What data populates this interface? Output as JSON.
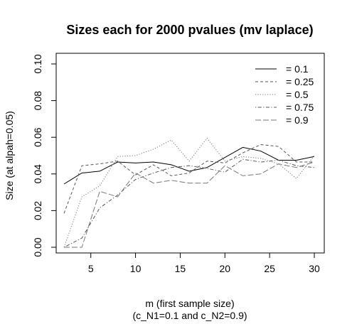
{
  "chart_data": {
    "type": "line",
    "title": "Sizes each for 2000 pvalues (mv laplace)",
    "xlabel": "m (first sample size)",
    "xlabel2": "(c_N1=0.1 and c_N2=0.9)",
    "ylabel": "Size (at alpah=0.05)",
    "xlim": [
      1,
      31
    ],
    "ylim": [
      0.0,
      0.1
    ],
    "xticks": [
      5,
      10,
      15,
      20,
      25,
      30
    ],
    "xtick_labels": [
      "5",
      "10",
      "15",
      "20",
      "25",
      "30"
    ],
    "yticks": [
      0.0,
      0.02,
      0.04,
      0.06,
      0.08,
      0.1
    ],
    "ytick_labels": [
      "0.00",
      "0.02",
      "0.04",
      "0.06",
      "0.08",
      "0.10"
    ],
    "legend_position": "top-right",
    "x": [
      2,
      4,
      6,
      8,
      10,
      12,
      14,
      16,
      18,
      20,
      22,
      24,
      26,
      28,
      30
    ],
    "series": [
      {
        "name": "= 0.1",
        "dash": "solid",
        "color": "#000000",
        "values": [
          0.0345,
          0.0405,
          0.0415,
          0.0465,
          0.046,
          0.0465,
          0.045,
          0.0415,
          0.0435,
          0.049,
          0.0545,
          0.0525,
          0.0475,
          0.0475,
          0.0495
        ]
      },
      {
        "name": "= 0.25",
        "dash": "dashed",
        "color": "#555555",
        "values": [
          0.0185,
          0.0445,
          0.0455,
          0.047,
          0.0395,
          0.045,
          0.039,
          0.0405,
          0.047,
          0.046,
          0.0515,
          0.056,
          0.055,
          0.0465,
          0.0465
        ]
      },
      {
        "name": "= 0.5",
        "dash": "dotted",
        "color": "#777777",
        "values": [
          0.0,
          0.0275,
          0.0335,
          0.0495,
          0.05,
          0.0535,
          0.0585,
          0.047,
          0.0595,
          0.047,
          0.0495,
          0.0485,
          0.0455,
          0.0375,
          0.05
        ]
      },
      {
        "name": "= 0.75",
        "dash": "dotdash",
        "color": "#555555",
        "values": [
          0.0,
          0.005,
          0.0215,
          0.0285,
          0.037,
          0.0405,
          0.0435,
          0.0445,
          0.043,
          0.041,
          0.048,
          0.0465,
          0.0475,
          0.0445,
          0.0435
        ]
      },
      {
        "name": "= 0.9",
        "dash": "longdash",
        "color": "#777777",
        "values": [
          0.0,
          0.0,
          0.0305,
          0.0275,
          0.0405,
          0.035,
          0.0365,
          0.035,
          0.035,
          0.0445,
          0.039,
          0.04,
          0.0455,
          0.0435,
          0.0465
        ]
      }
    ]
  }
}
